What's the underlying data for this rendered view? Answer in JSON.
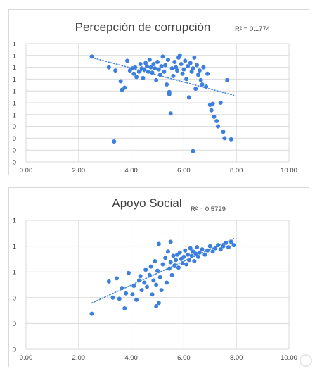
{
  "chart_data": [
    {
      "type": "scatter",
      "title": "Percepción de corrupción",
      "r2_label": "R² = 0.1774",
      "xlim": [
        0,
        10
      ],
      "x_ticks": [
        "0.00",
        "2.00",
        "4.00",
        "6.00",
        "8.00",
        "10.00"
      ],
      "y_tick_labels": [
        "0",
        "0",
        "0",
        "0",
        "1",
        "1",
        "1",
        "1",
        "1",
        "1",
        "1"
      ],
      "ylim": [
        0,
        1.1
      ],
      "grid": true,
      "marker_color": "#3c7fdc",
      "trendline": {
        "style": "dotted",
        "x": [
          2.5,
          7.9
        ],
        "y": [
          0.97,
          0.62
        ]
      },
      "points": [
        [
          2.5,
          0.98
        ],
        [
          3.15,
          0.88
        ],
        [
          3.4,
          0.85
        ],
        [
          3.35,
          0.19
        ],
        [
          3.6,
          0.75
        ],
        [
          3.65,
          0.67
        ],
        [
          3.75,
          0.69
        ],
        [
          3.85,
          0.94
        ],
        [
          3.95,
          0.85
        ],
        [
          4.05,
          0.87
        ],
        [
          4.1,
          0.82
        ],
        [
          4.15,
          0.88
        ],
        [
          4.2,
          0.79
        ],
        [
          4.3,
          0.84
        ],
        [
          4.35,
          0.91
        ],
        [
          4.4,
          0.87
        ],
        [
          4.45,
          0.78
        ],
        [
          4.5,
          0.86
        ],
        [
          4.55,
          0.92
        ],
        [
          4.6,
          0.89
        ],
        [
          4.65,
          0.84
        ],
        [
          4.7,
          0.95
        ],
        [
          4.75,
          0.88
        ],
        [
          4.8,
          0.83
        ],
        [
          4.85,
          0.91
        ],
        [
          4.9,
          0.87
        ],
        [
          4.95,
          0.76
        ],
        [
          5.0,
          0.93
        ],
        [
          5.05,
          0.86
        ],
        [
          5.1,
          0.81
        ],
        [
          5.15,
          0.89
        ],
        [
          5.2,
          0.98
        ],
        [
          5.25,
          0.84
        ],
        [
          5.3,
          0.9
        ],
        [
          5.35,
          0.72
        ],
        [
          5.4,
          0.95
        ],
        [
          5.45,
          0.63
        ],
        [
          5.5,
          0.45
        ],
        [
          5.55,
          0.87
        ],
        [
          5.6,
          0.8
        ],
        [
          5.65,
          0.93
        ],
        [
          5.7,
          0.88
        ],
        [
          5.75,
          0.85
        ],
        [
          5.8,
          0.97
        ],
        [
          5.85,
          0.99
        ],
        [
          5.9,
          0.91
        ],
        [
          5.95,
          0.82
        ],
        [
          6.0,
          0.86
        ],
        [
          6.05,
          0.94
        ],
        [
          6.1,
          0.77
        ],
        [
          6.15,
          0.89
        ],
        [
          6.2,
          0.6
        ],
        [
          6.25,
          0.92
        ],
        [
          6.3,
          0.84
        ],
        [
          6.35,
          0.87
        ],
        [
          6.4,
          0.97
        ],
        [
          6.45,
          0.68
        ],
        [
          6.5,
          0.9
        ],
        [
          6.55,
          0.81
        ],
        [
          6.6,
          0.85
        ],
        [
          6.65,
          0.76
        ],
        [
          6.7,
          0.72
        ],
        [
          6.75,
          0.88
        ],
        [
          6.85,
          0.7
        ],
        [
          6.9,
          0.82
        ],
        [
          7.0,
          0.53
        ],
        [
          7.05,
          0.48
        ],
        [
          7.1,
          0.54
        ],
        [
          7.15,
          0.42
        ],
        [
          7.25,
          0.38
        ],
        [
          7.3,
          0.33
        ],
        [
          7.4,
          0.55
        ],
        [
          7.5,
          0.28
        ],
        [
          7.55,
          0.22
        ],
        [
          7.65,
          0.76
        ],
        [
          7.8,
          0.21
        ],
        [
          6.35,
          0.1
        ],
        [
          5.45,
          0.65
        ]
      ]
    },
    {
      "type": "scatter",
      "title": "Apoyo Social",
      "r2_label": "R² = 0.5729",
      "xlim": [
        0,
        10
      ],
      "x_ticks": [
        "0.00",
        "2.00",
        "4.00",
        "6.00",
        "8.00",
        "10.00"
      ],
      "y_tick_labels": [
        "0",
        "0",
        "0",
        "1",
        "1",
        "1"
      ],
      "ylim": [
        0,
        1.2
      ],
      "grid": true,
      "marker_color": "#3c7fdc",
      "trendline": {
        "style": "dotted",
        "x": [
          2.5,
          7.9
        ],
        "y": [
          0.43,
          1.03
        ]
      },
      "points": [
        [
          2.5,
          0.33
        ],
        [
          3.15,
          0.63
        ],
        [
          3.3,
          0.48
        ],
        [
          3.45,
          0.66
        ],
        [
          3.55,
          0.47
        ],
        [
          3.65,
          0.57
        ],
        [
          3.75,
          0.38
        ],
        [
          3.8,
          0.52
        ],
        [
          3.9,
          0.71
        ],
        [
          4.05,
          0.51
        ],
        [
          4.1,
          0.59
        ],
        [
          4.2,
          0.46
        ],
        [
          4.3,
          0.64
        ],
        [
          4.35,
          0.68
        ],
        [
          4.4,
          0.55
        ],
        [
          4.5,
          0.62
        ],
        [
          4.55,
          0.74
        ],
        [
          4.6,
          0.58
        ],
        [
          4.7,
          0.69
        ],
        [
          4.75,
          0.77
        ],
        [
          4.8,
          0.51
        ],
        [
          4.85,
          0.64
        ],
        [
          4.9,
          0.82
        ],
        [
          4.95,
          0.6
        ],
        [
          5.0,
          0.73
        ],
        [
          5.05,
          0.43
        ],
        [
          5.1,
          0.67
        ],
        [
          5.15,
          0.55
        ],
        [
          5.2,
          0.79
        ],
        [
          5.3,
          0.85
        ],
        [
          5.35,
          0.62
        ],
        [
          5.4,
          0.91
        ],
        [
          5.45,
          0.75
        ],
        [
          5.5,
          0.81
        ],
        [
          5.55,
          0.69
        ],
        [
          5.6,
          0.87
        ],
        [
          5.65,
          0.78
        ],
        [
          5.7,
          0.83
        ],
        [
          5.75,
          0.88
        ],
        [
          5.8,
          0.76
        ],
        [
          5.85,
          0.9
        ],
        [
          5.9,
          0.84
        ],
        [
          5.95,
          0.8
        ],
        [
          6.0,
          0.86
        ],
        [
          6.05,
          0.92
        ],
        [
          6.1,
          0.79
        ],
        [
          6.15,
          0.88
        ],
        [
          6.2,
          0.83
        ],
        [
          6.25,
          0.94
        ],
        [
          6.3,
          0.87
        ],
        [
          6.35,
          0.91
        ],
        [
          6.4,
          0.82
        ],
        [
          6.45,
          0.89
        ],
        [
          6.5,
          0.95
        ],
        [
          6.55,
          0.86
        ],
        [
          6.6,
          0.9
        ],
        [
          6.7,
          0.93
        ],
        [
          6.8,
          0.88
        ],
        [
          6.9,
          0.92
        ],
        [
          7.0,
          0.96
        ],
        [
          7.1,
          0.91
        ],
        [
          7.2,
          0.94
        ],
        [
          7.3,
          0.97
        ],
        [
          7.4,
          0.93
        ],
        [
          7.5,
          0.96
        ],
        [
          7.6,
          0.99
        ],
        [
          7.7,
          0.95
        ],
        [
          7.8,
          1.0
        ],
        [
          7.9,
          0.97
        ],
        [
          5.05,
          0.98
        ],
        [
          4.95,
          0.4
        ],
        [
          5.5,
          1.0
        ]
      ]
    }
  ]
}
